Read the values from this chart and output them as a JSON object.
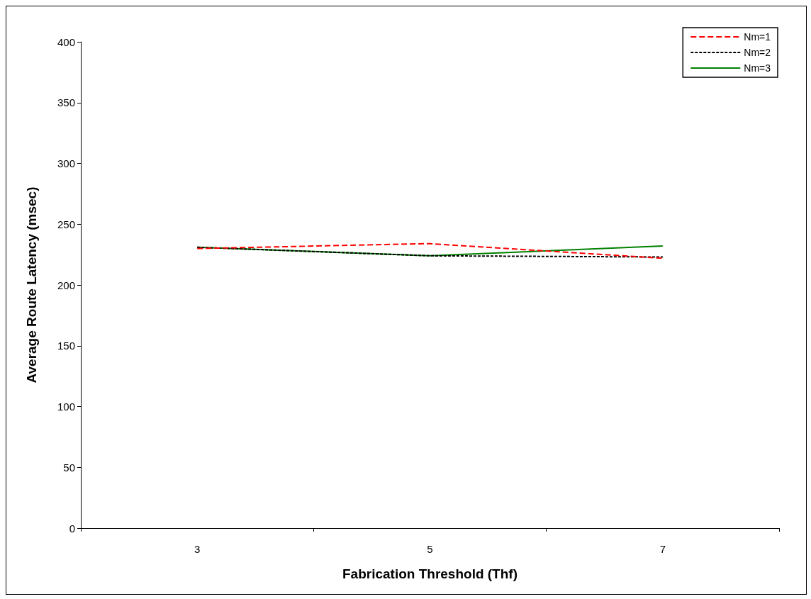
{
  "chart_data": {
    "type": "line",
    "xlabel": "Fabrication Threshold (Thf)",
    "ylabel": "Average Route Latency (msec)",
    "categories": [
      "3",
      "5",
      "7"
    ],
    "ylim": [
      0,
      400
    ],
    "yticks": [
      0,
      50,
      100,
      150,
      200,
      250,
      300,
      350,
      400
    ],
    "grid": false,
    "legend": "top right",
    "marker": "none",
    "series": [
      {
        "name": "Nm=1",
        "color": "#ff0000",
        "line_style": "dashed",
        "values": [
          230,
          234,
          222
        ]
      },
      {
        "name": "Nm=2",
        "color": "#000000",
        "line_style": "dotted",
        "values": [
          231,
          224,
          223
        ]
      },
      {
        "name": "Nm=3",
        "color": "#008000",
        "line_style": "solid",
        "values": [
          231,
          224,
          232
        ]
      }
    ]
  }
}
